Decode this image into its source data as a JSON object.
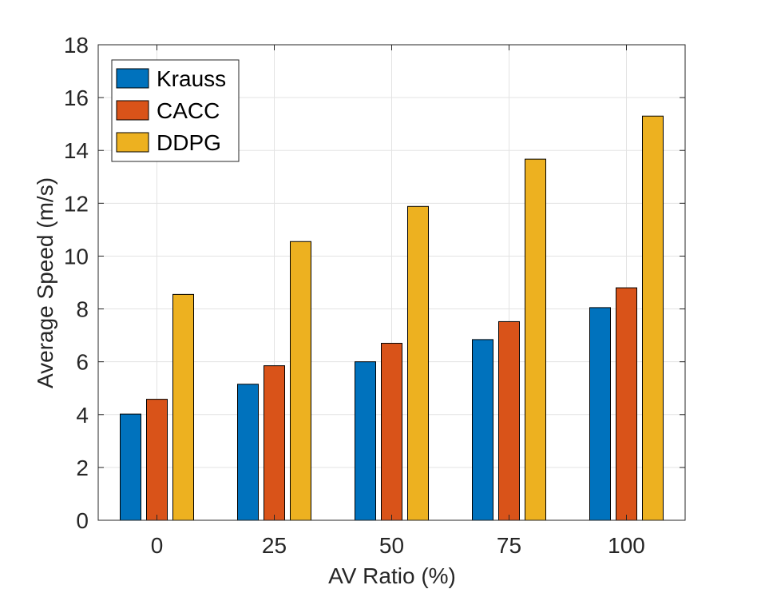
{
  "chart_data": {
    "type": "bar",
    "title": "",
    "xlabel": "AV Ratio (%)",
    "ylabel": "Average Speed (m/s)",
    "categories": [
      "0",
      "25",
      "50",
      "75",
      "100"
    ],
    "series": [
      {
        "name": "Krauss",
        "color": "#0072BD",
        "values": [
          4.02,
          5.15,
          6.0,
          6.84,
          8.05
        ]
      },
      {
        "name": "CACC",
        "color": "#D95319",
        "values": [
          4.58,
          5.85,
          6.7,
          7.52,
          8.8
        ]
      },
      {
        "name": "DDPG",
        "color": "#EDB120",
        "values": [
          8.55,
          10.55,
          11.88,
          13.67,
          15.3
        ]
      }
    ],
    "ylim": [
      0,
      18
    ],
    "yticks": [
      0,
      2,
      4,
      6,
      8,
      10,
      12,
      14,
      16,
      18
    ],
    "grid": true,
    "legend_position": "top-left"
  }
}
